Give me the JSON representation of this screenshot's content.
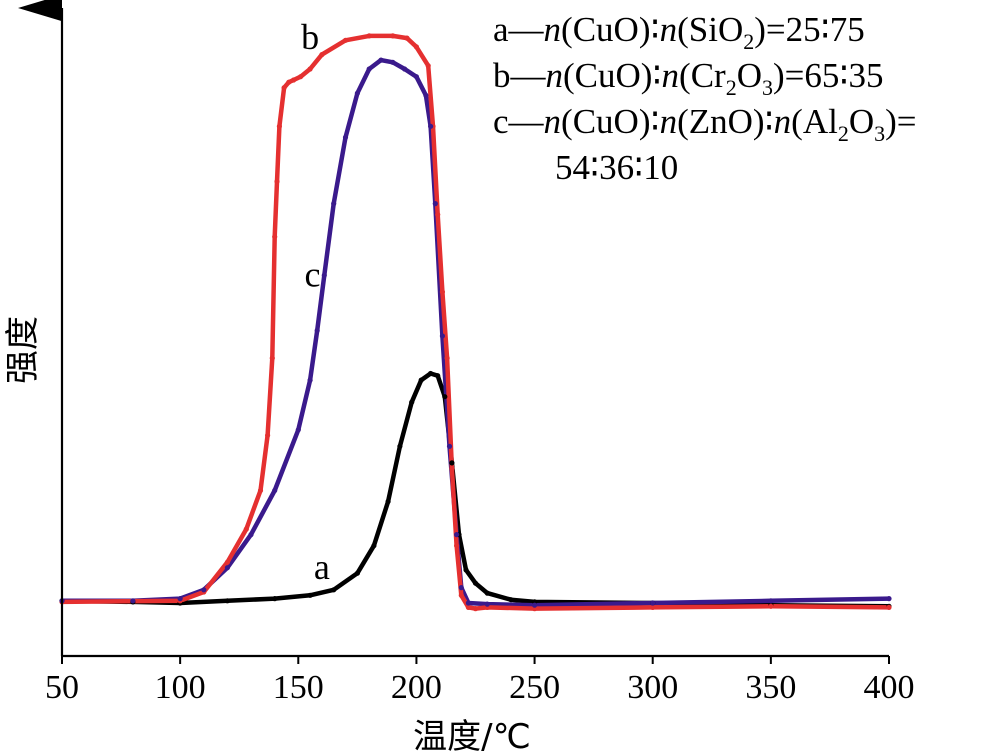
{
  "chart_data": {
    "type": "line",
    "xlabel": "温度/℃",
    "ylabel": "强度",
    "xlim": [
      50,
      400
    ],
    "ylim": [
      -0.5,
      5.3
    ],
    "xticks": [
      "50",
      "100",
      "150",
      "200",
      "250",
      "300",
      "350",
      "400"
    ],
    "yticks_shown": false,
    "grid": false,
    "legend_position": "top-right",
    "legend": [
      "a—n(CuO):n(SiO₂)=25:75",
      "b—n(CuO):n(Cr₂O₃)=65:35",
      "c—n(CuO):n(ZnO):n(Al₂O₃)=",
      "54:36:10"
    ],
    "series": [
      {
        "name": "a",
        "color": "#000000",
        "label_at": [
          160,
          0.2
        ],
        "x": [
          50,
          80,
          100,
          120,
          140,
          155,
          165,
          175,
          182,
          188,
          193,
          198,
          202,
          206,
          209,
          212,
          215,
          218,
          221,
          225,
          230,
          240,
          250,
          300,
          350,
          400
        ],
        "y": [
          0.0,
          -0.01,
          -0.02,
          0.0,
          0.02,
          0.05,
          0.1,
          0.25,
          0.5,
          0.9,
          1.4,
          1.8,
          2.0,
          2.06,
          2.04,
          1.85,
          1.25,
          0.6,
          0.28,
          0.16,
          0.07,
          0.01,
          -0.01,
          -0.02,
          -0.04,
          -0.05
        ]
      },
      {
        "name": "b",
        "color": "#e53030",
        "label_at": [
          155,
          5.0
        ],
        "x": [
          50,
          100,
          110,
          120,
          128,
          134,
          137,
          139,
          140,
          141,
          142,
          144,
          146,
          148,
          151,
          155,
          160,
          170,
          180,
          190,
          196,
          200,
          205,
          207,
          209,
          211,
          213,
          215,
          217,
          219,
          222,
          225,
          230,
          250,
          300,
          350,
          400
        ],
        "y": [
          -0.01,
          0.0,
          0.08,
          0.35,
          0.65,
          1.0,
          1.5,
          2.2,
          3.3,
          3.8,
          4.3,
          4.65,
          4.7,
          4.72,
          4.75,
          4.82,
          4.95,
          5.08,
          5.12,
          5.12,
          5.1,
          5.02,
          4.85,
          4.3,
          3.5,
          2.8,
          2.2,
          1.2,
          0.5,
          0.05,
          -0.06,
          -0.07,
          -0.06,
          -0.07,
          -0.06,
          -0.05,
          -0.06
        ]
      },
      {
        "name": "c",
        "color": "#3a1a8c",
        "label_at": [
          156,
          2.85
        ],
        "x": [
          50,
          80,
          100,
          110,
          120,
          130,
          140,
          150,
          155,
          158,
          161,
          165,
          170,
          175,
          180,
          185,
          190,
          195,
          200,
          204,
          206,
          208,
          211,
          214,
          217,
          219,
          222,
          230,
          250,
          300,
          350,
          400
        ],
        "y": [
          0.0,
          0.0,
          0.02,
          0.1,
          0.3,
          0.6,
          1.0,
          1.55,
          2.0,
          2.45,
          2.95,
          3.6,
          4.2,
          4.6,
          4.82,
          4.9,
          4.88,
          4.82,
          4.75,
          4.58,
          4.3,
          3.6,
          2.4,
          1.4,
          0.6,
          0.12,
          -0.02,
          -0.03,
          -0.04,
          -0.02,
          0.0,
          0.02
        ]
      }
    ]
  }
}
